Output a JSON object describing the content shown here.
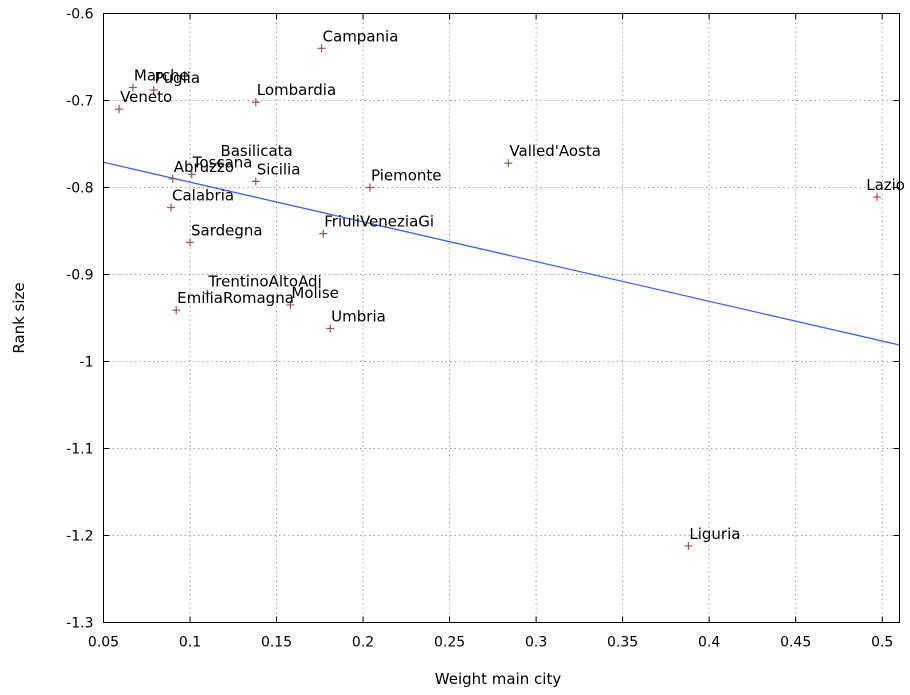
{
  "chart_data": {
    "type": "scatter",
    "title": "",
    "xlabel": "Weight main city",
    "ylabel": "Rank size",
    "xlim": [
      0.05,
      0.51
    ],
    "ylim": [
      -1.3,
      -0.6
    ],
    "xticks": [
      0.05,
      0.1,
      0.15,
      0.2,
      0.25,
      0.3,
      0.35,
      0.4,
      0.45,
      0.5
    ],
    "xtick_labels": [
      "0.05",
      "0.1",
      "0.15",
      "0.2",
      "0.25",
      "0.3",
      "0.35",
      "0.4",
      "0.45",
      "0.5"
    ],
    "yticks": [
      -0.6,
      -0.7,
      -0.8,
      -0.9,
      -1.0,
      -1.1,
      -1.2,
      -1.3
    ],
    "ytick_labels": [
      "-0.6",
      "-0.7",
      "-0.8",
      "-0.9",
      "-1",
      "-1.1",
      "-1.2",
      "-1.3"
    ],
    "grid": true,
    "marker_color": "#a0524d",
    "fit_color": "#3f63f0",
    "points": [
      {
        "label": "Campania",
        "x": 0.176,
        "y": -0.64
      },
      {
        "label": "Marche",
        "x": 0.067,
        "y": -0.685
      },
      {
        "label": "Puglia",
        "x": 0.079,
        "y": -0.688
      },
      {
        "label": "Veneto",
        "x": 0.059,
        "y": -0.71
      },
      {
        "label": "Lombardia",
        "x": 0.138,
        "y": -0.702
      },
      {
        "label": "Basilicata",
        "x": 0.117,
        "y": -0.772
      },
      {
        "label": "Toscana",
        "x": 0.101,
        "y": -0.785
      },
      {
        "label": "Abruzzo",
        "x": 0.09,
        "y": -0.79
      },
      {
        "label": "Sicilia",
        "x": 0.138,
        "y": -0.793
      },
      {
        "label": "Valled'Aosta",
        "x": 0.284,
        "y": -0.772
      },
      {
        "label": "Piemonte",
        "x": 0.204,
        "y": -0.8
      },
      {
        "label": "Lazio",
        "x": 0.497,
        "y": -0.811
      },
      {
        "label": "Calabria",
        "x": 0.089,
        "y": -0.823
      },
      {
        "label": "FriuliVeneziaGi",
        "x": 0.177,
        "y": -0.853
      },
      {
        "label": "Sardegna",
        "x": 0.1,
        "y": -0.863
      },
      {
        "label": "TrentinoAltoAdi",
        "x": 0.11,
        "y": -0.922
      },
      {
        "label": "EmiliaRomagna",
        "x": 0.092,
        "y": -0.941
      },
      {
        "label": "Molise",
        "x": 0.158,
        "y": -0.935
      },
      {
        "label": "Umbria",
        "x": 0.181,
        "y": -0.962
      },
      {
        "label": "Liguria",
        "x": 0.388,
        "y": -1.212
      }
    ],
    "fit_line": {
      "x": [
        0.05,
        0.51
      ],
      "y": [
        -0.771,
        -0.981
      ]
    }
  }
}
